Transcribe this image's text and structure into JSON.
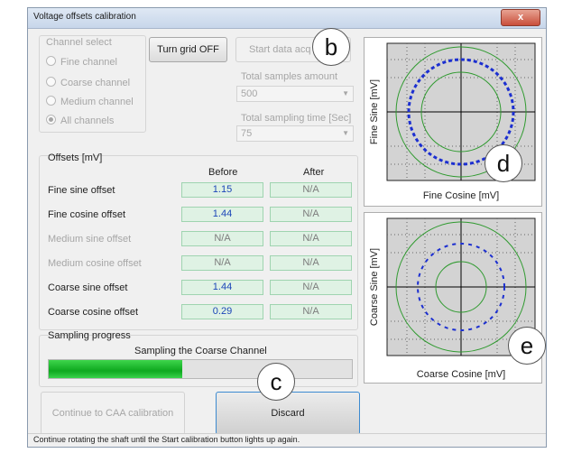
{
  "window": {
    "title": "Voltage offsets calibration",
    "close_label": "x"
  },
  "channel_select": {
    "title": "Channel select",
    "options": [
      "Fine channel",
      "Coarse channel",
      "Medium channel",
      "All channels"
    ],
    "selected": "All channels"
  },
  "grid_button": "Turn grid OFF",
  "start_button": "Start data acq",
  "total_samples": {
    "label": "Total samples amount",
    "value": "500"
  },
  "total_time": {
    "label": "Total sampling time [Sec]",
    "value": "75"
  },
  "offsets": {
    "title": "Offsets [mV]",
    "col_before": "Before",
    "col_after": "After",
    "rows": [
      {
        "label": "Fine sine offset",
        "before": "1.15",
        "after": "N/A",
        "enabled": true
      },
      {
        "label": "Fine cosine offset",
        "before": "1.44",
        "after": "N/A",
        "enabled": true
      },
      {
        "label": "Medium sine offset",
        "before": "N/A",
        "after": "N/A",
        "enabled": false
      },
      {
        "label": "Medium cosine offset",
        "before": "N/A",
        "after": "N/A",
        "enabled": false
      },
      {
        "label": "Coarse sine offset",
        "before": "1.44",
        "after": "N/A",
        "enabled": true
      },
      {
        "label": "Coarse cosine offset",
        "before": "0.29",
        "after": "N/A",
        "enabled": true
      }
    ]
  },
  "sampling": {
    "title": "Sampling progress",
    "text": "Sampling the Coarse Channel",
    "progress": 0.44
  },
  "continue_button": "Continue to CAA calibration",
  "discard_button": "Discard",
  "status": "Continue rotating the shaft until the Start calibration button lights up again.",
  "plot_fine": {
    "xlabel": "Fine Cosine [mV]",
    "ylabel": "Fine Sine [mV]"
  },
  "plot_coarse": {
    "xlabel": "Coarse Cosine [mV]",
    "ylabel": "Coarse Sine [mV]"
  },
  "callouts": [
    "b",
    "c",
    "d",
    "e"
  ],
  "colors": {
    "progress": "#16b42a",
    "trace": "#1c2fd0",
    "ring": "#2f9a2f",
    "value_box": "#dff2e4"
  }
}
